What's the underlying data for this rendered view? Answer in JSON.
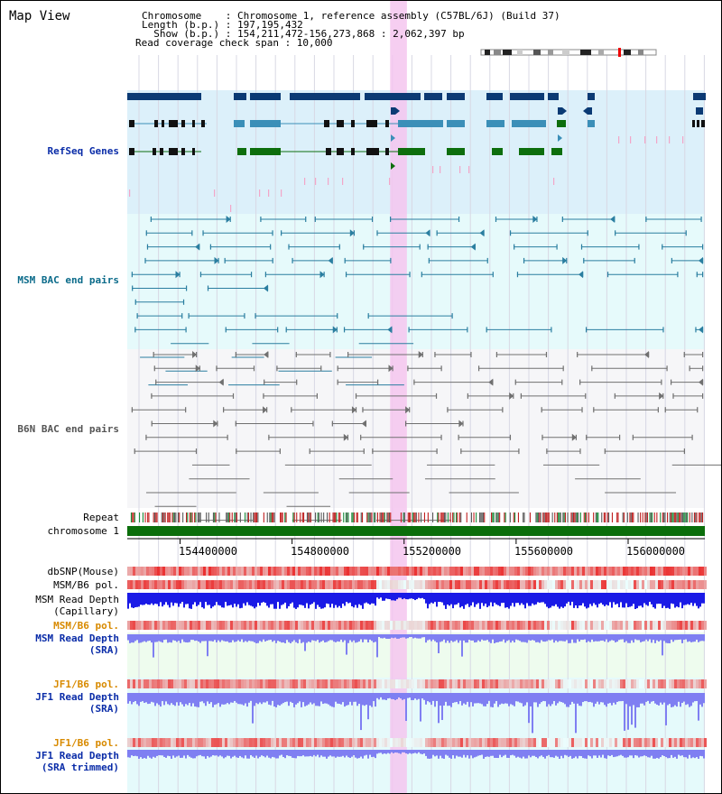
{
  "title": "Map View",
  "info": {
    "line1": "Chromosome    : Chromosome 1, reference assembly (C57BL/6J) (Build 37)",
    "line2": "Length (b.p.) : 197,195,432",
    "line3": "  Show (b.p.) : 154,211,472-156,273,868 : 2,062,397 bp",
    "line4": "Read coverage check span : 10,000"
  },
  "tracks": {
    "refseq": "RefSeq Genes",
    "msm_bac": "MSM BAC end pairs",
    "b6n_bac": "B6N BAC end pairs",
    "repeat": "Repeat",
    "chromosome": "chromosome 1",
    "dbsnp": "dbSNP(Mouse)",
    "msm_b6_pol_1": "MSM/B6 pol.",
    "msm_depth_cap_1": "MSM Read Depth",
    "msm_depth_cap_2": "(Capillary)",
    "msm_b6_pol_2": "MSM/B6 pol.",
    "msm_depth_sra_1": "MSM Read Depth",
    "msm_depth_sra_2": "(SRA)",
    "jf1_b6_pol_1": "JF1/B6 pol.",
    "jf1_depth_sra_1": "JF1 Read Depth",
    "jf1_depth_sra_2": "(SRA)",
    "jf1_b6_pol_2": "JF1/B6 pol.",
    "jf1_depth_trim_1": "JF1 Read Depth",
    "jf1_depth_trim_2": "(SRA trimmed)"
  },
  "axis": {
    "start_bp": 154211472,
    "end_bp": 156273868,
    "ticks": [
      "154400000",
      "154800000",
      "155200000",
      "155600000",
      "156000000"
    ],
    "tick_values": [
      154400000,
      154800000,
      155200000,
      155600000,
      156000000
    ]
  },
  "highlight": {
    "start_bp": 155150000,
    "end_bp": 155210000,
    "color": "#f5c6ee"
  },
  "colors": {
    "refseq_dark": "#0b3a74",
    "refseq_mid": "#3b8fb8",
    "refseq_green": "#0d6e0d",
    "msm_bac": "#2a7ea0",
    "b6n_bac": "#707070",
    "depth_blue": "#1a1ae6",
    "depth_light": "#7f7ff2",
    "pol_red": "#e02020",
    "chrom_green": "#0b6e0b"
  }
}
